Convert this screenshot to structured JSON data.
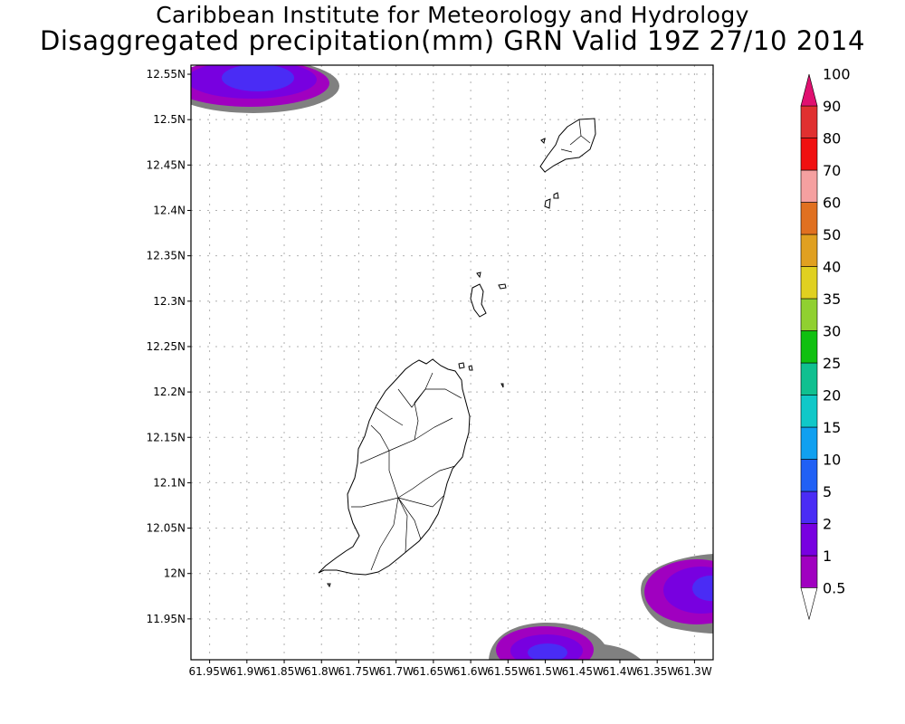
{
  "header": {
    "title": "Caribbean Institute for Meteorology and Hydrology",
    "subtitle": "Disaggregated precipitation(mm) GRN Valid 19Z 27/10 2014"
  },
  "map": {
    "lat_range": [
      11.905,
      12.56
    ],
    "lon_range": [
      -61.975,
      -61.275
    ],
    "lat_ticks": [
      "12.55N",
      "12.5N",
      "12.45N",
      "12.4N",
      "12.35N",
      "12.3N",
      "12.25N",
      "12.2N",
      "12.15N",
      "12.1N",
      "12.05N",
      "12N",
      "11.95N"
    ],
    "lon_ticks": [
      "61.95W",
      "61.9W",
      "61.85W",
      "61.8W",
      "61.75W",
      "61.7W",
      "61.65W",
      "61.6W",
      "61.55W",
      "61.5W",
      "61.45W",
      "61.4W",
      "61.35W",
      "61.3W"
    ],
    "grid": true,
    "features": [
      "Grenada",
      "Carriacou",
      "Grenadines islets"
    ]
  },
  "colorbar": {
    "levels": [
      "0.5",
      "1",
      "2",
      "5",
      "10",
      "15",
      "20",
      "25",
      "30",
      "35",
      "40",
      "50",
      "60",
      "70",
      "80",
      "90",
      "100"
    ],
    "colors": [
      "#808080",
      "#a000c0",
      "#7800e0",
      "#4a2cf5",
      "#2060f5",
      "#10a0f0",
      "#10c8c8",
      "#10c090",
      "#10c010",
      "#90d030",
      "#e0d020",
      "#e0a020",
      "#e07020",
      "#f5a0a0",
      "#f01010",
      "#e03030",
      "#e01070"
    ]
  }
}
